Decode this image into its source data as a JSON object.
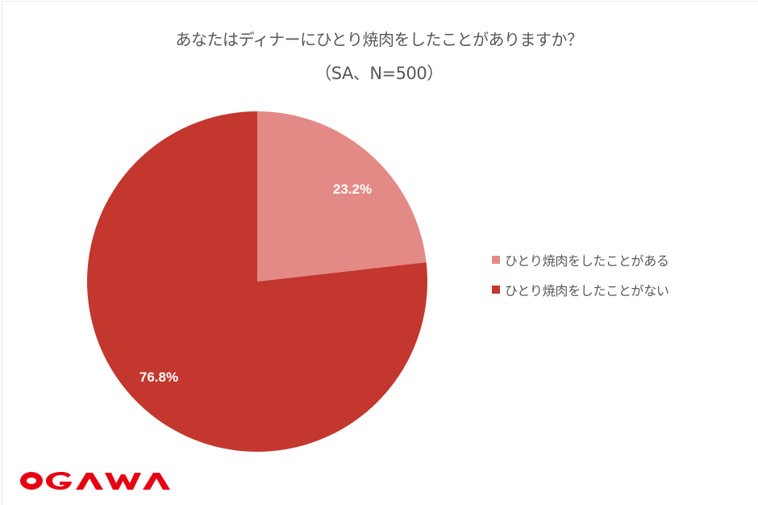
{
  "chart_data": {
    "type": "pie",
    "title": "あなたはディナーにひとり焼肉をしたことがありますか？",
    "subtitle": "（SA、N=500）",
    "categories": [
      "ひとり焼肉をしたことがある",
      "ひとり焼肉をしたことがない"
    ],
    "values": [
      23.2,
      76.8
    ],
    "labels": [
      "23.2%",
      "76.8%"
    ],
    "colors": [
      "#E48A86",
      "#C3372F"
    ],
    "start_angle": "12 o'clock, clockwise",
    "legend_position": "right"
  },
  "header": {
    "title": "あなたはディナーにひとり焼肉をしたことがありますか？",
    "subtitle": "（SA、N=500）"
  },
  "legend": {
    "items": [
      {
        "label": "ひとり焼肉をしたことがある",
        "color": "#E48A86"
      },
      {
        "label": "ひとり焼肉をしたことがない",
        "color": "#C3372F"
      }
    ]
  },
  "logo": {
    "text": "OGAWA",
    "color": "#E60012"
  }
}
